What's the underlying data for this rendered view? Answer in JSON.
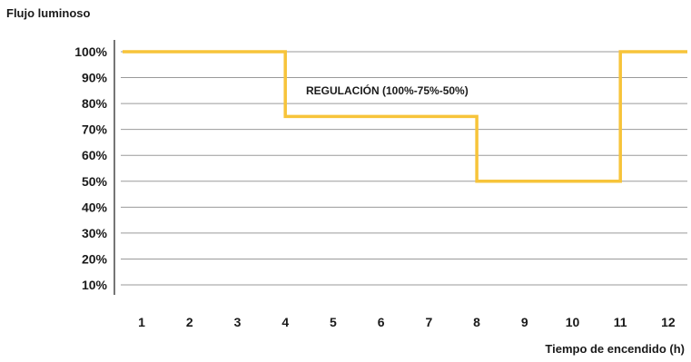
{
  "chart_data": {
    "type": "line",
    "step": true,
    "ylabel": "Flujo luminoso",
    "xlabel": "Tiempo de encendido (h)",
    "annotation": "REGULACIÓN (100%-75%-50%)",
    "yticks": [
      "100%",
      "90%",
      "80%",
      "70%",
      "60%",
      "50%",
      "40%",
      "30%",
      "20%",
      "10%"
    ],
    "ytick_values": [
      100,
      90,
      80,
      70,
      60,
      50,
      40,
      30,
      20,
      10
    ],
    "xticks": [
      "1",
      "2",
      "3",
      "4",
      "5",
      "6",
      "7",
      "8",
      "9",
      "10",
      "11",
      "12"
    ],
    "ylim": [
      10,
      100
    ],
    "xlim": [
      0.6,
      12.4
    ],
    "grid": true,
    "series": [
      {
        "color": "#F7C43A",
        "points": [
          {
            "x": 0.6,
            "y": 100
          },
          {
            "x": 4,
            "y": 100
          },
          {
            "x": 4,
            "y": 75
          },
          {
            "x": 8,
            "y": 75
          },
          {
            "x": 8,
            "y": 50
          },
          {
            "x": 11,
            "y": 50
          },
          {
            "x": 11,
            "y": 100
          },
          {
            "x": 12.4,
            "y": 100
          }
        ]
      }
    ]
  }
}
